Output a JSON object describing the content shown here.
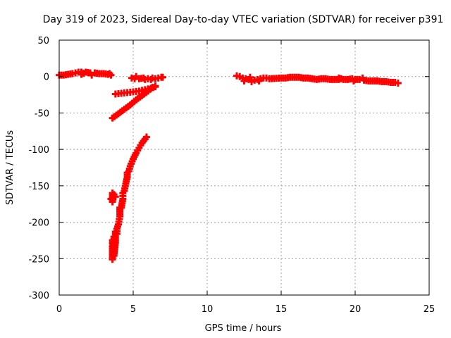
{
  "chart_data": {
    "type": "scatter",
    "title": "Day 319 of 2023, Sidereal Day-to-day VTEC variation (SDTVAR) for receiver p391",
    "xlabel": "GPS time / hours",
    "ylabel": "SDTVAR / TECUs",
    "xlim": [
      0,
      25
    ],
    "ylim": [
      -300,
      50
    ],
    "xticks": [
      0,
      5,
      10,
      15,
      20,
      25
    ],
    "yticks": [
      50,
      0,
      -50,
      -100,
      -150,
      -200,
      -250,
      -300
    ],
    "grid": true,
    "marker": "plus",
    "color": "#ff0000",
    "series": [
      {
        "name": "near-zero early",
        "points": [
          [
            0.0,
            2
          ],
          [
            0.3,
            2
          ],
          [
            0.6,
            3
          ],
          [
            0.9,
            4
          ],
          [
            1.1,
            5
          ],
          [
            1.3,
            6
          ],
          [
            1.5,
            6
          ],
          [
            1.8,
            6
          ],
          [
            2.1,
            5
          ],
          [
            2.4,
            5
          ],
          [
            2.7,
            4
          ],
          [
            3.0,
            4
          ],
          [
            3.3,
            3
          ],
          [
            3.5,
            2
          ],
          [
            3.4,
            4
          ],
          [
            2.2,
            2
          ],
          [
            1.5,
            3
          ]
        ]
      },
      {
        "name": "block 5-7h",
        "points": [
          [
            4.9,
            -2
          ],
          [
            5.1,
            -3
          ],
          [
            5.4,
            -3
          ],
          [
            5.7,
            -2
          ],
          [
            6.0,
            -3
          ],
          [
            6.3,
            -2
          ],
          [
            6.5,
            -3
          ],
          [
            5.2,
            0
          ],
          [
            5.8,
            -4
          ],
          [
            6.2,
            -4
          ],
          [
            6.9,
            -1
          ],
          [
            7.0,
            -1
          ]
        ]
      },
      {
        "name": "short arc",
        "points": [
          [
            3.8,
            -24
          ],
          [
            4.2,
            -23
          ],
          [
            4.6,
            -22
          ],
          [
            5.0,
            -21
          ],
          [
            5.4,
            -20
          ],
          [
            5.8,
            -18
          ],
          [
            6.2,
            -16
          ],
          [
            6.5,
            -14
          ]
        ]
      },
      {
        "name": "long arc",
        "points": [
          [
            3.6,
            -57
          ],
          [
            4.0,
            -51
          ],
          [
            4.4,
            -45
          ],
          [
            4.8,
            -39
          ],
          [
            5.2,
            -32
          ],
          [
            5.6,
            -26
          ],
          [
            6.0,
            -20
          ],
          [
            6.3,
            -15
          ],
          [
            6.5,
            -13
          ]
        ]
      },
      {
        "name": "deep arc",
        "points": [
          [
            3.6,
            -251
          ],
          [
            3.7,
            -240
          ],
          [
            3.8,
            -228
          ],
          [
            3.9,
            -216
          ],
          [
            4.0,
            -203
          ],
          [
            4.1,
            -192
          ],
          [
            4.2,
            -180
          ],
          [
            4.3,
            -168
          ],
          [
            4.4,
            -157
          ],
          [
            4.5,
            -147
          ],
          [
            4.6,
            -138
          ],
          [
            4.7,
            -130
          ],
          [
            4.8,
            -123
          ],
          [
            5.0,
            -113
          ],
          [
            5.2,
            -105
          ],
          [
            5.4,
            -98
          ],
          [
            5.6,
            -91
          ],
          [
            5.8,
            -86
          ],
          [
            5.9,
            -83
          ],
          [
            3.7,
            -220
          ],
          [
            3.8,
            -213
          ],
          [
            3.6,
            -233
          ],
          [
            3.7,
            -246
          ],
          [
            3.9,
            -209
          ],
          [
            4.1,
            -180
          ],
          [
            4.3,
            -160
          ],
          [
            4.6,
            -132
          ],
          [
            3.6,
            -225
          ]
        ]
      },
      {
        "name": "isolated 3.7h",
        "points": [
          [
            3.5,
            -168
          ],
          [
            3.6,
            -172
          ],
          [
            3.7,
            -162
          ],
          [
            3.8,
            -165
          ],
          [
            3.6,
            -160
          ]
        ]
      },
      {
        "name": "afternoon",
        "points": [
          [
            12.0,
            1
          ],
          [
            12.2,
            0
          ],
          [
            12.4,
            -2
          ],
          [
            12.6,
            -3
          ],
          [
            12.8,
            -4
          ],
          [
            13.0,
            -5
          ],
          [
            13.2,
            -5
          ],
          [
            13.4,
            -4
          ],
          [
            13.6,
            -3
          ],
          [
            13.8,
            -2
          ],
          [
            14.0,
            -2
          ],
          [
            14.2,
            -3
          ],
          [
            12.5,
            -6
          ],
          [
            13.0,
            -7
          ],
          [
            13.5,
            -6
          ],
          [
            12.9,
            -1
          ],
          [
            15.0,
            -2
          ],
          [
            15.3,
            -2
          ],
          [
            15.6,
            -1
          ],
          [
            15.9,
            -1
          ],
          [
            16.2,
            -1
          ],
          [
            16.5,
            -2
          ],
          [
            16.8,
            -2
          ],
          [
            17.1,
            -3
          ],
          [
            17.4,
            -4
          ],
          [
            17.7,
            -3
          ],
          [
            18.0,
            -3
          ],
          [
            18.3,
            -4
          ],
          [
            18.6,
            -4
          ],
          [
            18.9,
            -4
          ],
          [
            19.2,
            -4
          ],
          [
            19.5,
            -4
          ],
          [
            19.8,
            -3
          ],
          [
            20.0,
            -4
          ],
          [
            20.3,
            -4
          ],
          [
            20.6,
            -5
          ],
          [
            20.9,
            -6
          ],
          [
            21.2,
            -6
          ],
          [
            21.5,
            -6
          ],
          [
            21.8,
            -7
          ],
          [
            22.1,
            -7
          ],
          [
            22.4,
            -8
          ],
          [
            22.7,
            -8
          ],
          [
            22.9,
            -9
          ],
          [
            20.5,
            -2
          ],
          [
            19.9,
            -6
          ],
          [
            18.9,
            -2
          ]
        ]
      }
    ]
  }
}
